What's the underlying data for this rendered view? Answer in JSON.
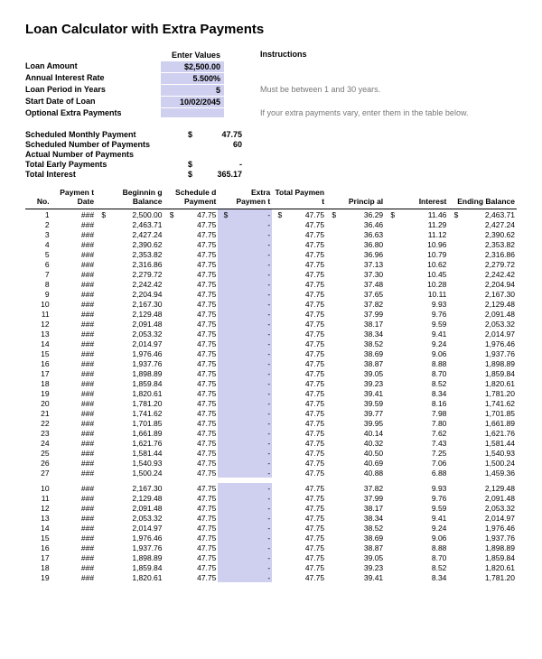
{
  "title": "Loan Calculator with Extra Payments",
  "header": {
    "enterValuesLabel": "Enter Values",
    "instructionsLabel": "Instructions",
    "rows": [
      {
        "label": "Loan Amount",
        "value": "$2,500.00",
        "note": ""
      },
      {
        "label": "Annual Interest Rate",
        "value": "5.500%",
        "note": ""
      },
      {
        "label": "Loan Period in Years",
        "value": "5",
        "note": "Must be between 1 and 30 years."
      },
      {
        "label": "Start Date of Loan",
        "value": "10/02/2045",
        "note": ""
      },
      {
        "label": "Optional Extra Payments",
        "value": "",
        "note": "If your extra payments vary, enter them in the table below."
      }
    ]
  },
  "summary": [
    {
      "label": "Scheduled Monthly Payment",
      "cur": "$",
      "value": "47.75"
    },
    {
      "label": "Scheduled Number of Payments",
      "cur": "",
      "value": "60"
    },
    {
      "label": "Actual Number of Payments",
      "cur": "",
      "value": ""
    },
    {
      "label": "Total Early Payments",
      "cur": "$",
      "value": "-"
    },
    {
      "label": "Total Interest",
      "cur": "$",
      "value": "365.17"
    }
  ],
  "tableHeaders": {
    "no": "No.",
    "date": "Paymen t Date",
    "beg": "Beginnin g Balance",
    "sched": "Schedule d Payment",
    "extra": "Extra Paymen t",
    "total": "Total Paymen t",
    "principal": "Princip al",
    "interest": "Interest",
    "ending": "Ending Balance"
  },
  "rows1": [
    {
      "no": "1",
      "date": "###",
      "beg": "2,500.00",
      "begCur": "$",
      "sch": "47.75",
      "schCur": "$",
      "extCur": "$",
      "ext": "-",
      "totCur": "$",
      "tot": "47.75",
      "prnCur": "$",
      "prn": "36.29",
      "intCur": "$",
      "int": "11.46",
      "endCur": "$",
      "end": "2,463.71"
    },
    {
      "no": "2",
      "date": "###",
      "beg": "2,463.71",
      "sch": "47.75",
      "ext": "-",
      "tot": "47.75",
      "prn": "36.46",
      "int": "11.29",
      "end": "2,427.24"
    },
    {
      "no": "3",
      "date": "###",
      "beg": "2,427.24",
      "sch": "47.75",
      "ext": "-",
      "tot": "47.75",
      "prn": "36.63",
      "int": "11.12",
      "end": "2,390.62"
    },
    {
      "no": "4",
      "date": "###",
      "beg": "2,390.62",
      "sch": "47.75",
      "ext": "-",
      "tot": "47.75",
      "prn": "36.80",
      "int": "10.96",
      "end": "2,353.82"
    },
    {
      "no": "5",
      "date": "###",
      "beg": "2,353.82",
      "sch": "47.75",
      "ext": "-",
      "tot": "47.75",
      "prn": "36.96",
      "int": "10.79",
      "end": "2,316.86"
    },
    {
      "no": "6",
      "date": "###",
      "beg": "2,316.86",
      "sch": "47.75",
      "ext": "-",
      "tot": "47.75",
      "prn": "37.13",
      "int": "10.62",
      "end": "2,279.72"
    },
    {
      "no": "7",
      "date": "###",
      "beg": "2,279.72",
      "sch": "47.75",
      "ext": "-",
      "tot": "47.75",
      "prn": "37.30",
      "int": "10.45",
      "end": "2,242.42"
    },
    {
      "no": "8",
      "date": "###",
      "beg": "2,242.42",
      "sch": "47.75",
      "ext": "-",
      "tot": "47.75",
      "prn": "37.48",
      "int": "10.28",
      "end": "2,204.94"
    },
    {
      "no": "9",
      "date": "###",
      "beg": "2,204.94",
      "sch": "47.75",
      "ext": "-",
      "tot": "47.75",
      "prn": "37.65",
      "int": "10.11",
      "end": "2,167.30"
    },
    {
      "no": "10",
      "date": "###",
      "beg": "2,167.30",
      "sch": "47.75",
      "ext": "-",
      "tot": "47.75",
      "prn": "37.82",
      "int": "9.93",
      "end": "2,129.48"
    },
    {
      "no": "11",
      "date": "###",
      "beg": "2,129.48",
      "sch": "47.75",
      "ext": "-",
      "tot": "47.75",
      "prn": "37.99",
      "int": "9.76",
      "end": "2,091.48"
    },
    {
      "no": "12",
      "date": "###",
      "beg": "2,091.48",
      "sch": "47.75",
      "ext": "-",
      "tot": "47.75",
      "prn": "38.17",
      "int": "9.59",
      "end": "2,053.32"
    },
    {
      "no": "13",
      "date": "###",
      "beg": "2,053.32",
      "sch": "47.75",
      "ext": "-",
      "tot": "47.75",
      "prn": "38.34",
      "int": "9.41",
      "end": "2,014.97"
    },
    {
      "no": "14",
      "date": "###",
      "beg": "2,014.97",
      "sch": "47.75",
      "ext": "-",
      "tot": "47.75",
      "prn": "38.52",
      "int": "9.24",
      "end": "1,976.46"
    },
    {
      "no": "15",
      "date": "###",
      "beg": "1,976.46",
      "sch": "47.75",
      "ext": "-",
      "tot": "47.75",
      "prn": "38.69",
      "int": "9.06",
      "end": "1,937.76"
    },
    {
      "no": "16",
      "date": "###",
      "beg": "1,937.76",
      "sch": "47.75",
      "ext": "-",
      "tot": "47.75",
      "prn": "38.87",
      "int": "8.88",
      "end": "1,898.89"
    },
    {
      "no": "17",
      "date": "###",
      "beg": "1,898.89",
      "sch": "47.75",
      "ext": "-",
      "tot": "47.75",
      "prn": "39.05",
      "int": "8.70",
      "end": "1,859.84"
    },
    {
      "no": "18",
      "date": "###",
      "beg": "1,859.84",
      "sch": "47.75",
      "ext": "-",
      "tot": "47.75",
      "prn": "39.23",
      "int": "8.52",
      "end": "1,820.61"
    },
    {
      "no": "19",
      "date": "###",
      "beg": "1,820.61",
      "sch": "47.75",
      "ext": "-",
      "tot": "47.75",
      "prn": "39.41",
      "int": "8.34",
      "end": "1,781.20"
    },
    {
      "no": "20",
      "date": "###",
      "beg": "1,781.20",
      "sch": "47.75",
      "ext": "-",
      "tot": "47.75",
      "prn": "39.59",
      "int": "8.16",
      "end": "1,741.62"
    },
    {
      "no": "21",
      "date": "###",
      "beg": "1,741.62",
      "sch": "47.75",
      "ext": "-",
      "tot": "47.75",
      "prn": "39.77",
      "int": "7.98",
      "end": "1,701.85"
    },
    {
      "no": "22",
      "date": "###",
      "beg": "1,701.85",
      "sch": "47.75",
      "ext": "-",
      "tot": "47.75",
      "prn": "39.95",
      "int": "7.80",
      "end": "1,661.89"
    },
    {
      "no": "23",
      "date": "###",
      "beg": "1,661.89",
      "sch": "47.75",
      "ext": "-",
      "tot": "47.75",
      "prn": "40.14",
      "int": "7.62",
      "end": "1,621.76"
    },
    {
      "no": "24",
      "date": "###",
      "beg": "1,621.76",
      "sch": "47.75",
      "ext": "-",
      "tot": "47.75",
      "prn": "40.32",
      "int": "7.43",
      "end": "1,581.44"
    },
    {
      "no": "25",
      "date": "###",
      "beg": "1,581.44",
      "sch": "47.75",
      "ext": "-",
      "tot": "47.75",
      "prn": "40.50",
      "int": "7.25",
      "end": "1,540.93"
    },
    {
      "no": "26",
      "date": "###",
      "beg": "1,540.93",
      "sch": "47.75",
      "ext": "-",
      "tot": "47.75",
      "prn": "40.69",
      "int": "7.06",
      "end": "1,500.24"
    },
    {
      "no": "27",
      "date": "###",
      "beg": "1,500.24",
      "sch": "47.75",
      "ext": "-",
      "tot": "47.75",
      "prn": "40.88",
      "int": "6.88",
      "end": "1,459.36"
    }
  ],
  "rows2": [
    {
      "no": "10",
      "date": "###",
      "beg": "2,167.30",
      "sch": "47.75",
      "ext": "-",
      "tot": "47.75",
      "prn": "37.82",
      "int": "9.93",
      "end": "2,129.48"
    },
    {
      "no": "11",
      "date": "###",
      "beg": "2,129.48",
      "sch": "47.75",
      "ext": "-",
      "tot": "47.75",
      "prn": "37.99",
      "int": "9.76",
      "end": "2,091.48"
    },
    {
      "no": "12",
      "date": "###",
      "beg": "2,091.48",
      "sch": "47.75",
      "ext": "-",
      "tot": "47.75",
      "prn": "38.17",
      "int": "9.59",
      "end": "2,053.32"
    },
    {
      "no": "13",
      "date": "###",
      "beg": "2,053.32",
      "sch": "47.75",
      "ext": "-",
      "tot": "47.75",
      "prn": "38.34",
      "int": "9.41",
      "end": "2,014.97"
    },
    {
      "no": "14",
      "date": "###",
      "beg": "2,014.97",
      "sch": "47.75",
      "ext": "-",
      "tot": "47.75",
      "prn": "38.52",
      "int": "9.24",
      "end": "1,976.46"
    },
    {
      "no": "15",
      "date": "###",
      "beg": "1,976.46",
      "sch": "47.75",
      "ext": "-",
      "tot": "47.75",
      "prn": "38.69",
      "int": "9.06",
      "end": "1,937.76"
    },
    {
      "no": "16",
      "date": "###",
      "beg": "1,937.76",
      "sch": "47.75",
      "ext": "-",
      "tot": "47.75",
      "prn": "38.87",
      "int": "8.88",
      "end": "1,898.89"
    },
    {
      "no": "17",
      "date": "###",
      "beg": "1,898.89",
      "sch": "47.75",
      "ext": "-",
      "tot": "47.75",
      "prn": "39.05",
      "int": "8.70",
      "end": "1,859.84"
    },
    {
      "no": "18",
      "date": "###",
      "beg": "1,859.84",
      "sch": "47.75",
      "ext": "-",
      "tot": "47.75",
      "prn": "39.23",
      "int": "8.52",
      "end": "1,820.61"
    },
    {
      "no": "19",
      "date": "###",
      "beg": "1,820.61",
      "sch": "47.75",
      "ext": "-",
      "tot": "47.75",
      "prn": "39.41",
      "int": "8.34",
      "end": "1,781.20"
    }
  ],
  "styling": {
    "highlightBg": "#cfcfef",
    "textColor": "#000000",
    "mutedColor": "#777777",
    "fontFamily": "Arial",
    "titleFontSize": 15,
    "bodyFontSize": 9,
    "tableFontSize": 8.5
  }
}
